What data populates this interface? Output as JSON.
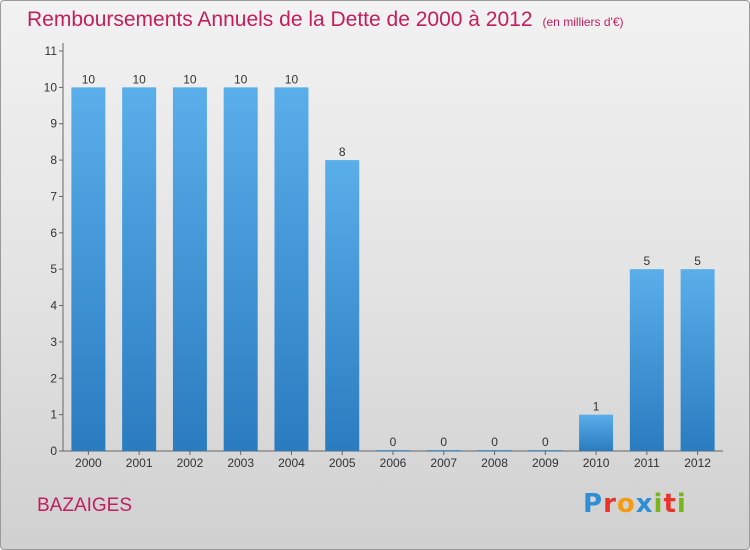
{
  "header": {
    "title": "Remboursements Annuels de la Dette de 2000 à 2012",
    "unit": "(en milliers d'€)"
  },
  "footer": {
    "commune": "BAZAIGES",
    "logo_letters": [
      "P",
      "r",
      "o",
      "x",
      "i",
      "t",
      "i"
    ],
    "logo_colors": [
      "#2e8fd6",
      "#e8342c",
      "#f39c12",
      "#2e8fd6",
      "#7ab51d",
      "#e8342c",
      "#7ab51d"
    ]
  },
  "colors": {
    "bar_top": "#5aaeea",
    "bar_bottom": "#2a7cc0",
    "axis_text": "#333333",
    "title": "#c31e5c"
  },
  "chart_data": {
    "type": "bar",
    "title": "Remboursements Annuels de la Dette de 2000 à 2012",
    "xlabel": "",
    "ylabel": "",
    "categories": [
      "2000",
      "2001",
      "2002",
      "2003",
      "2004",
      "2005",
      "2006",
      "2007",
      "2008",
      "2009",
      "2010",
      "2011",
      "2012"
    ],
    "values": [
      10,
      10,
      10,
      10,
      10,
      8,
      0,
      0,
      0,
      0,
      1,
      5,
      5
    ],
    "data_labels": [
      "10",
      "10",
      "10",
      "10",
      "10",
      "8",
      "0",
      "0",
      "0",
      "0",
      "1",
      "5",
      "5"
    ],
    "y_ticks": [
      0,
      1,
      2,
      3,
      4,
      5,
      6,
      7,
      8,
      9,
      10,
      11
    ],
    "ylim": [
      0,
      11
    ],
    "grid": false,
    "legend": "none"
  }
}
